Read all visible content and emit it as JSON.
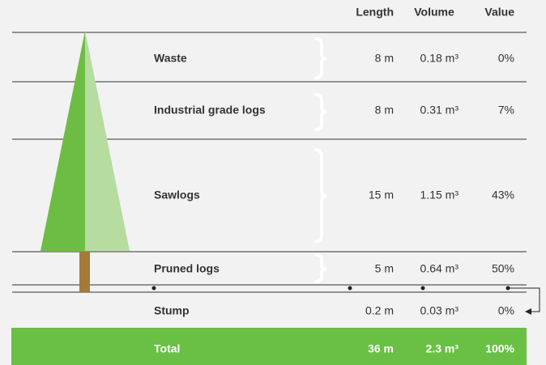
{
  "header": {
    "columns": [
      "Length",
      "Volume",
      "Value"
    ]
  },
  "rows": [
    {
      "label": "Waste",
      "length": "8 m",
      "volume": "0.18 m³",
      "value": "0%"
    },
    {
      "label": "Industrial grade logs",
      "length": "8 m",
      "volume": "0.31 m³",
      "value": "7%"
    },
    {
      "label": "Sawlogs",
      "length": "15 m",
      "volume": "1.15 m³",
      "value": "43%"
    },
    {
      "label": "Pruned logs",
      "length": "5 m",
      "volume": "0.64 m³",
      "value": "50%"
    },
    {
      "label": "Stump",
      "length": "0.2 m",
      "volume": "0.03 m³",
      "value": "0%"
    }
  ],
  "total": {
    "label": "Total",
    "length": "36 m",
    "volume": "2.3 m³",
    "value": "100%"
  }
}
